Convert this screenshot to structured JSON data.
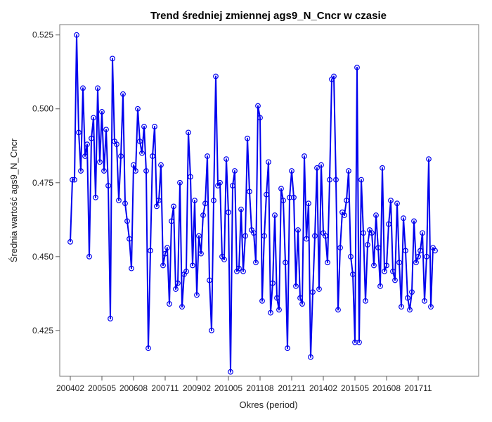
{
  "chart_data": {
    "type": "line",
    "title": "Trend średniej zmiennej ags9_N_Cncr w czasie",
    "xlabel": "Okres (period)",
    "ylabel": "Średnia wartość ags9_N_Cncr",
    "x_tick_labels": [
      "200402",
      "200505",
      "200608",
      "200711",
      "200902",
      "201005",
      "201108",
      "201211",
      "201402",
      "201505",
      "201608",
      "201711"
    ],
    "y_ticks": [
      0.425,
      0.45,
      0.475,
      0.5,
      0.525
    ],
    "y_tick_labels": [
      "0.425",
      "0.450",
      "0.475",
      "0.500",
      "0.525"
    ],
    "ylim": [
      0.4095,
      0.5285
    ],
    "x_start": "2004-02",
    "x_step": "1 month",
    "grid": false,
    "legend": "none",
    "colors": {
      "series": "#0000ee",
      "frame": "#7a7a7a"
    },
    "series": [
      {
        "values": [
          0.455,
          0.476,
          0.476,
          0.525,
          0.492,
          0.479,
          0.507,
          0.484,
          0.488,
          0.45,
          0.49,
          0.497,
          0.47,
          0.507,
          0.482,
          0.499,
          0.479,
          0.493,
          0.474,
          0.429,
          0.517,
          0.489,
          0.488,
          0.469,
          0.484,
          0.505,
          0.468,
          0.462,
          0.456,
          0.446,
          0.481,
          0.479,
          0.5,
          0.489,
          0.485,
          0.494,
          0.479,
          0.419,
          0.452,
          0.484,
          0.494,
          0.467,
          0.469,
          0.481,
          0.447,
          0.451,
          0.453,
          0.434,
          0.462,
          0.467,
          0.439,
          0.441,
          0.475,
          0.433,
          0.444,
          0.445,
          0.492,
          0.477,
          0.447,
          0.469,
          0.437,
          0.457,
          0.451,
          0.464,
          0.468,
          0.484,
          0.442,
          0.425,
          0.469,
          0.511,
          0.474,
          0.475,
          0.45,
          0.449,
          0.483,
          0.465,
          0.411,
          0.474,
          0.479,
          0.445,
          0.446,
          0.466,
          0.445,
          0.457,
          0.49,
          0.472,
          0.459,
          0.458,
          0.448,
          0.501,
          0.497,
          0.435,
          0.457,
          0.471,
          0.482,
          0.431,
          0.441,
          0.464,
          0.436,
          0.432,
          0.473,
          0.469,
          0.448,
          0.419,
          0.47,
          0.479,
          0.47,
          0.44,
          0.459,
          0.436,
          0.434,
          0.484,
          0.456,
          0.468,
          0.416,
          0.438,
          0.457,
          0.48,
          0.439,
          0.481,
          0.458,
          0.457,
          0.448,
          0.476,
          0.51,
          0.511,
          0.476,
          0.432,
          0.453,
          0.465,
          0.464,
          0.469,
          0.479,
          0.45,
          0.444,
          0.421,
          0.514,
          0.421,
          0.476,
          0.458,
          0.435,
          0.454,
          0.459,
          0.458,
          0.447,
          0.464,
          0.453,
          0.44,
          0.48,
          0.445,
          0.447,
          0.461,
          0.469,
          0.445,
          0.442,
          0.468,
          0.448,
          0.433,
          0.463,
          0.452,
          0.436,
          0.432,
          0.438,
          0.462,
          0.448,
          0.45,
          0.452,
          0.458,
          0.435,
          0.45,
          0.483,
          0.433,
          0.453,
          0.452
        ]
      }
    ]
  }
}
